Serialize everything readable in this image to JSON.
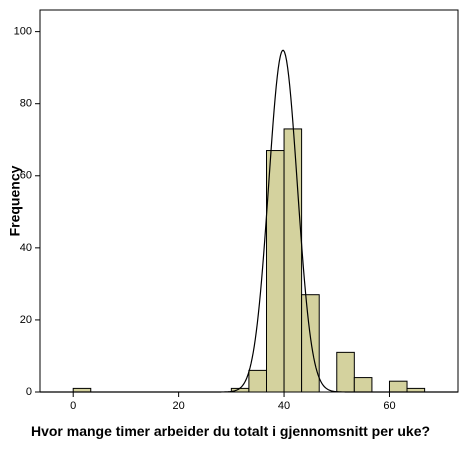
{
  "chart_data": {
    "type": "histogram",
    "x_label": "Hvor mange timer arbeider du totalt i gjennomsnitt per uke?",
    "y_label": "Frequency",
    "bins": [
      0,
      3.33,
      6.67,
      10,
      13.33,
      16.67,
      20,
      23.33,
      26.67,
      30,
      33.33,
      36.67,
      40,
      43.33,
      46.67,
      50,
      53.33,
      56.67,
      60,
      63.33,
      66.67
    ],
    "values": [
      1,
      0,
      0,
      0,
      0,
      0,
      0,
      0,
      0,
      1,
      6,
      67,
      73,
      27,
      0,
      11,
      4,
      0,
      3,
      1
    ],
    "color": "#d4d29e",
    "normal_curve": {
      "mean": 39.8,
      "sd": 2.72
    },
    "xlim": [
      -6.3,
      73
    ],
    "xticks": [
      0,
      20,
      40,
      60
    ],
    "ylim": [
      0,
      106
    ],
    "yticks": [
      0,
      20,
      40,
      60,
      80,
      100
    ]
  }
}
